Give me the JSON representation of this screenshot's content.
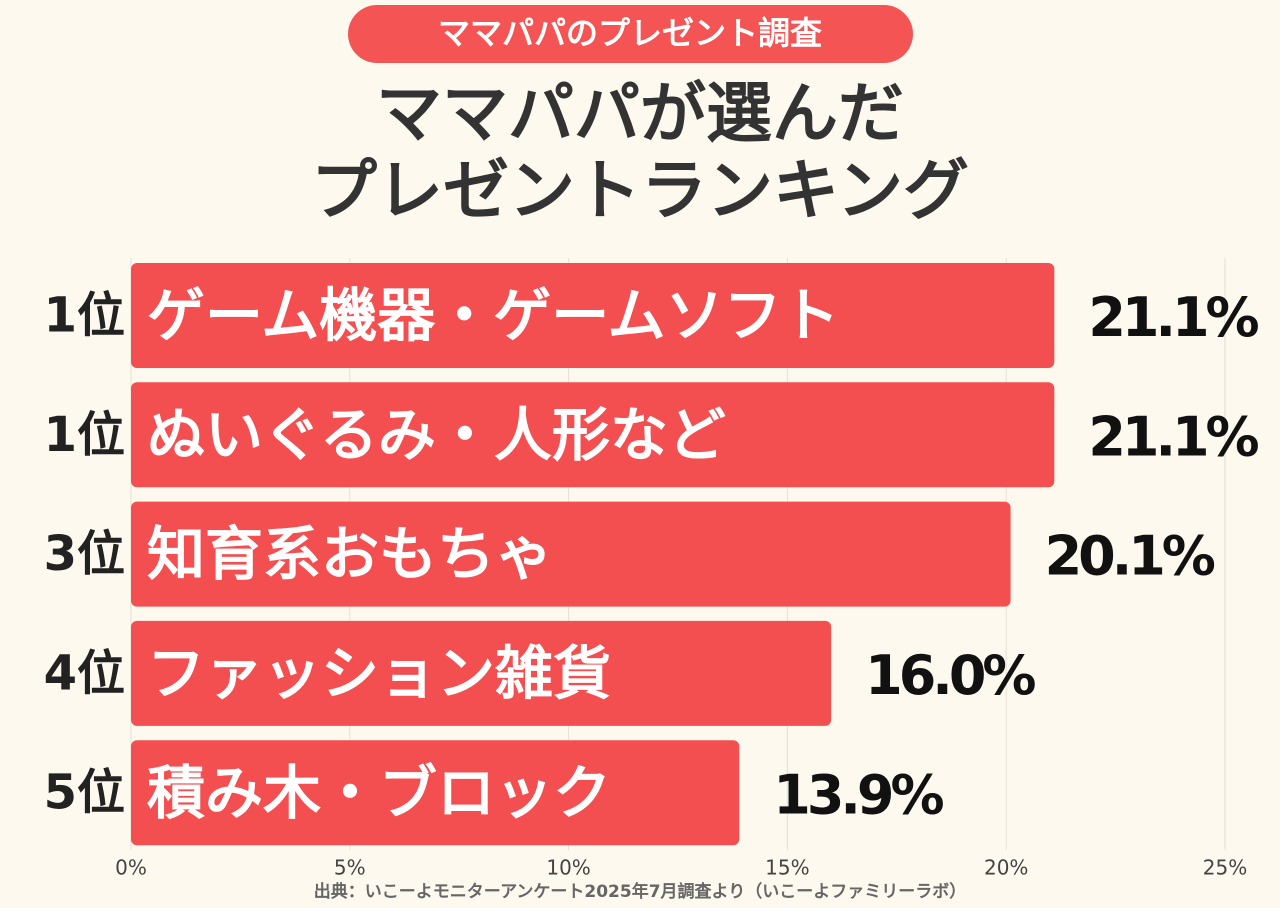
{
  "chart_data": {
    "type": "bar",
    "orientation": "horizontal",
    "badge": "ママパパのプレゼント調査",
    "title_lines": [
      "ママパパが選んだ",
      "プレゼントランキング"
    ],
    "ranks": [
      "1位",
      "1位",
      "3位",
      "4位",
      "5位"
    ],
    "categories": [
      "ゲーム機器・ゲームソフト",
      "ぬいぐるみ・人形など",
      "知育系おもちゃ",
      "ファッション雑貨",
      "積み木・ブロック"
    ],
    "values": [
      21.1,
      21.1,
      20.1,
      16.0,
      13.9
    ],
    "value_labels": [
      "21.1%",
      "21.1%",
      "20.1%",
      "16.0%",
      "13.9%"
    ],
    "color": "#f44f50",
    "xlim": [
      0,
      25
    ],
    "xticks": [
      {
        "value": 0,
        "label": "0%"
      },
      {
        "value": 5,
        "label": "5%"
      },
      {
        "value": 10,
        "label": "10%"
      },
      {
        "value": 15,
        "label": "15%"
      },
      {
        "value": 20,
        "label": "20%"
      },
      {
        "value": 25,
        "label": "25%"
      }
    ],
    "grid": true,
    "source": "出典：いこーよモニターアンケート2025年7月調査より（いこーよファミリーラボ）"
  }
}
